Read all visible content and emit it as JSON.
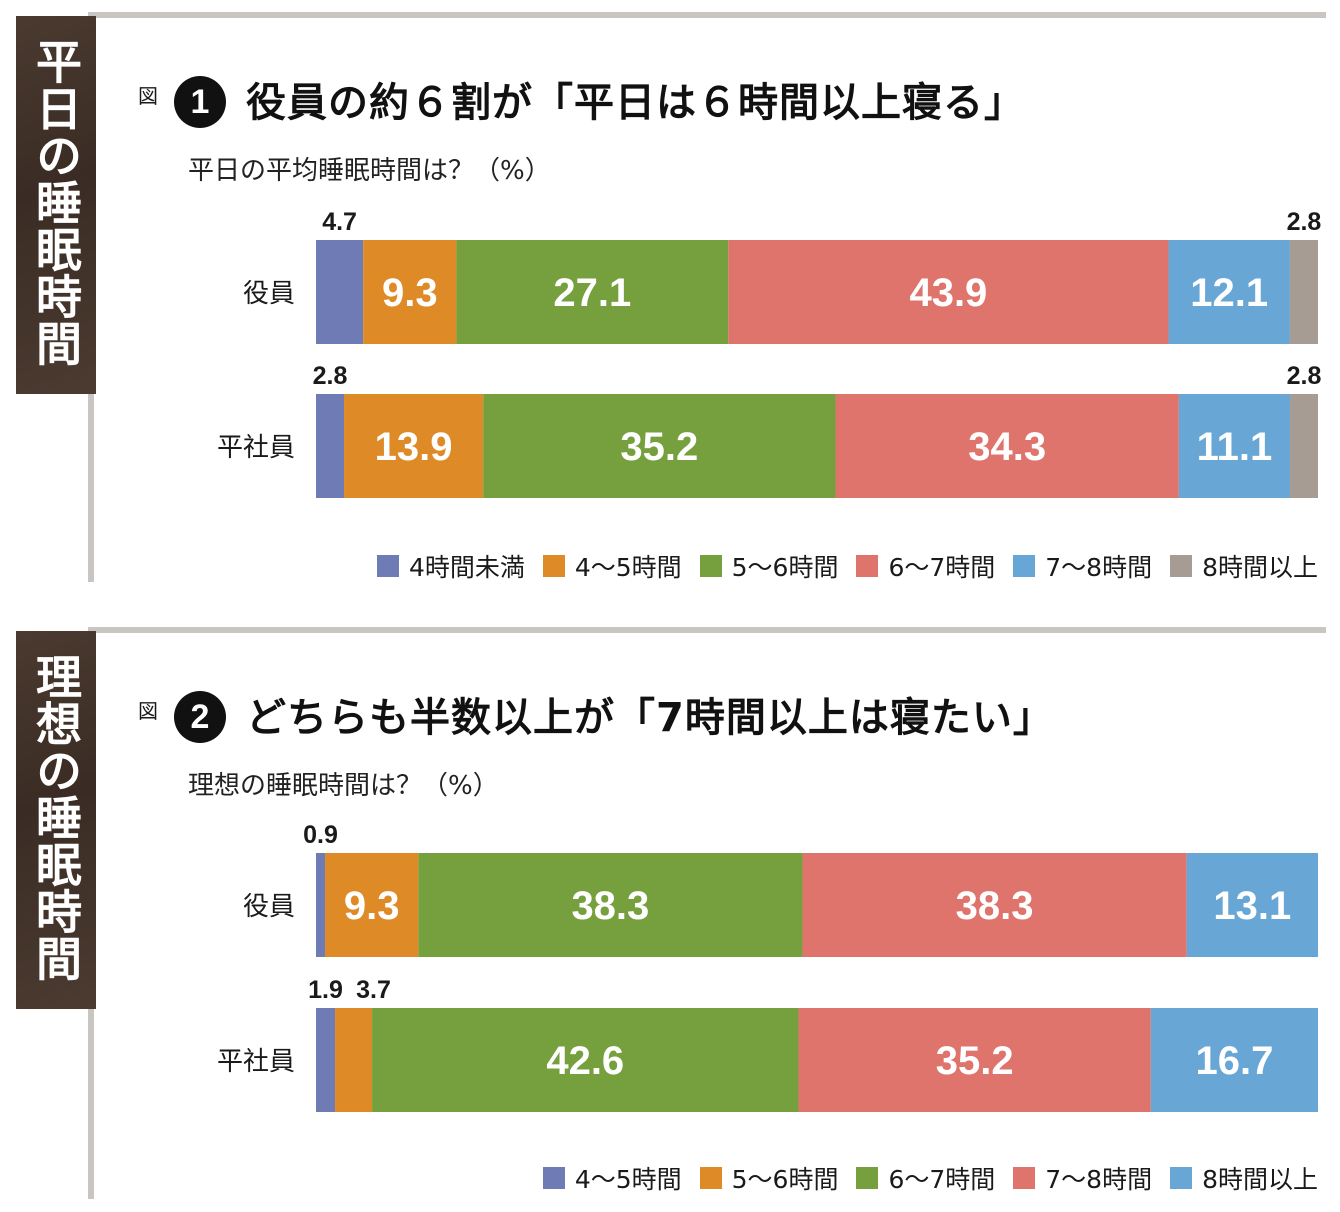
{
  "panels": [
    {
      "side_tab": "平日の睡眠時間",
      "fig_label": "図",
      "fig_num": "1",
      "title": "役員の約６割が「平日は６時間以上寝る」",
      "subtitle": "平日の平均睡眠時間は？（%）"
    },
    {
      "side_tab": "理想の睡眠時間",
      "fig_label": "図",
      "fig_num": "2",
      "title": "どちらも半数以上が「7時間以上は寝たい」",
      "subtitle": "理想の睡眠時間は？（%）"
    }
  ],
  "chart_data": [
    {
      "type": "bar",
      "orientation": "horizontal",
      "stacked": true,
      "categories": [
        "役員",
        "平社員"
      ],
      "series": [
        {
          "name": "4時間未満",
          "values": [
            4.7,
            2.8
          ],
          "color": "#6f7bb5"
        },
        {
          "name": "4～5時間",
          "values": [
            9.3,
            13.9
          ],
          "color": "#dd8a27"
        },
        {
          "name": "5～6時間",
          "values": [
            27.1,
            35.2
          ],
          "color": "#76a03d"
        },
        {
          "name": "6～7時間",
          "values": [
            43.9,
            34.3
          ],
          "color": "#de746b"
        },
        {
          "name": "7～8時間",
          "values": [
            12.1,
            11.1
          ],
          "color": "#68a6d6"
        },
        {
          "name": "8時間以上",
          "values": [
            2.8,
            2.8
          ],
          "color": "#a79c94"
        }
      ],
      "labels": [
        [
          "4.7",
          "9.3",
          "27.1",
          "43.9",
          "12.1",
          "2.8"
        ],
        [
          "2.8",
          "13.9",
          "35.2",
          "34.3",
          "11.1",
          "2.8"
        ]
      ],
      "xlim": [
        0,
        100
      ],
      "legend_position": "bottom-right"
    },
    {
      "type": "bar",
      "orientation": "horizontal",
      "stacked": true,
      "categories": [
        "役員",
        "平社員"
      ],
      "series": [
        {
          "name": "4～5時間",
          "values": [
            0.9,
            1.9
          ],
          "color": "#6f7bb5"
        },
        {
          "name": "5～6時間",
          "values": [
            9.3,
            3.7
          ],
          "color": "#dd8a27"
        },
        {
          "name": "6～7時間",
          "values": [
            38.3,
            42.6
          ],
          "color": "#76a03d"
        },
        {
          "name": "7～8時間",
          "values": [
            38.3,
            35.2
          ],
          "color": "#de746b"
        },
        {
          "name": "8時間以上",
          "values": [
            13.1,
            16.7
          ],
          "color": "#68a6d6"
        }
      ],
      "labels": [
        [
          "0.9",
          "9.3",
          "38.3",
          "38.3",
          "13.1"
        ],
        [
          "1.9",
          "3.7",
          "42.6",
          "35.2",
          "16.7"
        ]
      ],
      "xlim": [
        0,
        100
      ],
      "legend_position": "bottom-right"
    }
  ]
}
